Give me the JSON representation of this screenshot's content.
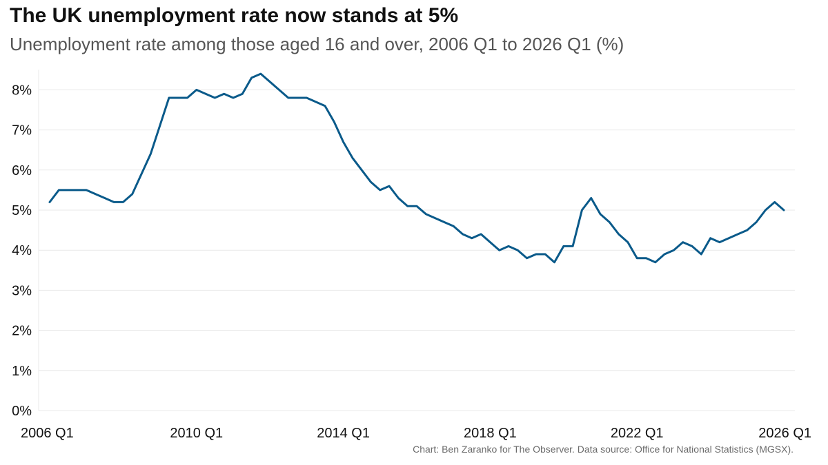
{
  "title": "The UK unemployment rate now stands at 5%",
  "subtitle": "Unemployment rate among those aged 16 and over, 2006 Q1 to 2026 Q1 (%)",
  "caption": "Chart: Ben Zaranko for The Observer. Data source: Office for National Statistics (MGSX).",
  "colors": {
    "line": "#0a5a8a",
    "grid": "#e9e9e9"
  },
  "chart_data": {
    "type": "line",
    "title": "The UK unemployment rate now stands at 5%",
    "subtitle": "Unemployment rate among those aged 16 and over, 2006 Q1 to 2026 Q1 (%)",
    "xlabel": "",
    "ylabel": "",
    "x_start": "2006 Q1",
    "x_end": "2026 Q1",
    "ylim": [
      0,
      8.5
    ],
    "grid": true,
    "legend": "none",
    "x_ticks": [
      {
        "label": "2006 Q1",
        "index": 0
      },
      {
        "label": "2010 Q1",
        "index": 16
      },
      {
        "label": "2014 Q1",
        "index": 32
      },
      {
        "label": "2018 Q1",
        "index": 48
      },
      {
        "label": "2022 Q1",
        "index": 64
      },
      {
        "label": "2026 Q1",
        "index": 80
      }
    ],
    "y_ticks": [
      {
        "value": 0,
        "label": "0%"
      },
      {
        "value": 1,
        "label": "1%"
      },
      {
        "value": 2,
        "label": "2%"
      },
      {
        "value": 3,
        "label": "3%"
      },
      {
        "value": 4,
        "label": "4%"
      },
      {
        "value": 5,
        "label": "5%"
      },
      {
        "value": 6,
        "label": "6%"
      },
      {
        "value": 7,
        "label": "7%"
      },
      {
        "value": 8,
        "label": "8%"
      }
    ],
    "series": [
      {
        "values": [
          5.2,
          5.5,
          5.5,
          5.5,
          5.5,
          5.4,
          5.3,
          5.2,
          5.2,
          5.4,
          5.9,
          6.4,
          7.1,
          7.8,
          7.8,
          7.8,
          8.0,
          7.9,
          7.8,
          7.9,
          7.8,
          7.9,
          8.3,
          8.4,
          8.2,
          8.0,
          7.8,
          7.8,
          7.8,
          7.7,
          7.6,
          7.2,
          6.7,
          6.3,
          6.0,
          5.7,
          5.5,
          5.6,
          5.3,
          5.1,
          5.1,
          4.9,
          4.8,
          4.7,
          4.6,
          4.4,
          4.3,
          4.4,
          4.2,
          4.0,
          4.1,
          4.0,
          3.8,
          3.9,
          3.9,
          3.7,
          4.1,
          4.1,
          5.0,
          5.3,
          4.9,
          4.7,
          4.4,
          4.2,
          3.8,
          3.8,
          3.7,
          3.9,
          4.0,
          4.2,
          4.1,
          3.9,
          4.3,
          4.2,
          4.3,
          4.4,
          4.5,
          4.7,
          5.0,
          5.2,
          5.0
        ]
      }
    ]
  }
}
